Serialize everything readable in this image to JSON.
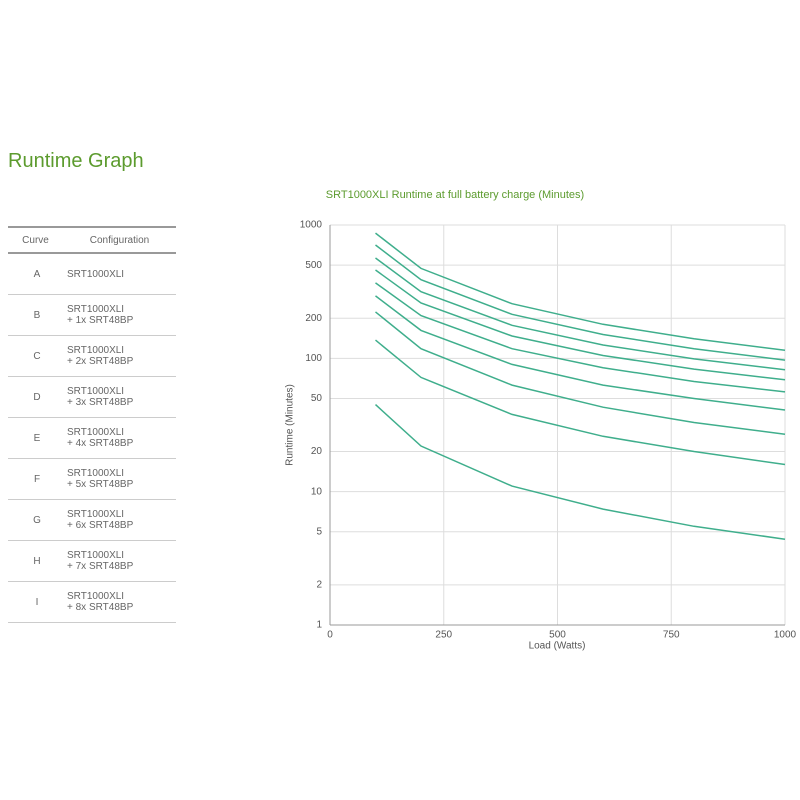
{
  "header": {
    "title": "Runtime Graph"
  },
  "table": {
    "columns": [
      "Curve",
      "Configuration"
    ],
    "rows": [
      [
        "A",
        "SRT1000XLI"
      ],
      [
        "B",
        "SRT1000XLI\n+ 1x SRT48BP"
      ],
      [
        "C",
        "SRT1000XLI\n+ 2x SRT48BP"
      ],
      [
        "D",
        "SRT1000XLI\n+ 3x SRT48BP"
      ],
      [
        "E",
        "SRT1000XLI\n+ 4x SRT48BP"
      ],
      [
        "F",
        "SRT1000XLI\n+ 5x SRT48BP"
      ],
      [
        "G",
        "SRT1000XLI\n+ 6x SRT48BP"
      ],
      [
        "H",
        "SRT1000XLI\n+ 7x SRT48BP"
      ],
      [
        "I",
        "SRT1000XLI\n+ 8x SRT48BP"
      ]
    ]
  },
  "chart_data": {
    "type": "line",
    "title": "SRT1000XLI Runtime at full battery charge (Minutes)",
    "xlabel": "Load (Watts)",
    "ylabel": "Runtime (Minutes)",
    "x": [
      100,
      200,
      400,
      600,
      800,
      1000
    ],
    "series": [
      {
        "name": "I",
        "color": "#3fae8c",
        "values": [
          870,
          473,
          257,
          180,
          140,
          115
        ]
      },
      {
        "name": "H",
        "color": "#3fae8c",
        "values": [
          708,
          389,
          214,
          151,
          118,
          97
        ]
      },
      {
        "name": "G",
        "color": "#3fae8c",
        "values": [
          566,
          316,
          177,
          126,
          99,
          82
        ]
      },
      {
        "name": "F",
        "color": "#3fae8c",
        "values": [
          460,
          260,
          147,
          105,
          83,
          69
        ]
      },
      {
        "name": "E",
        "color": "#3fae8c",
        "values": [
          368,
          209,
          118,
          85,
          67,
          56
        ]
      },
      {
        "name": "D",
        "color": "#3fae8c",
        "values": [
          294,
          162,
          90,
          63,
          50,
          41
        ]
      },
      {
        "name": "C",
        "color": "#3fae8c",
        "values": [
          223,
          118,
          63,
          43,
          33,
          27
        ]
      },
      {
        "name": "B",
        "color": "#3fae8c",
        "values": [
          137,
          72,
          38,
          26,
          20,
          16
        ]
      },
      {
        "name": "A",
        "color": "#3fae8c",
        "values": [
          45,
          22,
          11,
          7.4,
          5.5,
          4.4
        ]
      }
    ],
    "xlim": [
      0,
      1000
    ],
    "xticks": [
      0,
      250,
      500,
      750,
      1000
    ],
    "ylim": [
      1,
      1000
    ],
    "yticks": [
      1,
      2,
      5,
      10,
      20,
      50,
      100,
      200,
      500,
      1000
    ],
    "log_y": true,
    "grid": true
  }
}
